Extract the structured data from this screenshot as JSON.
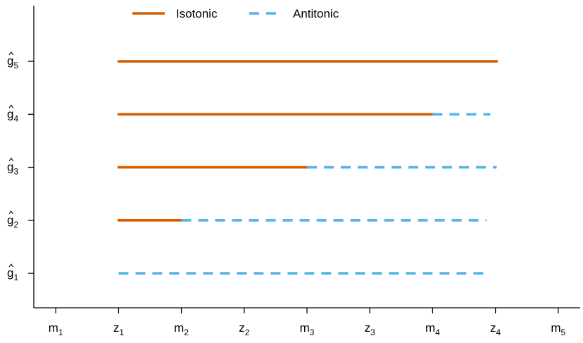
{
  "chart_data": {
    "type": "line",
    "title": "",
    "xlabel": "",
    "ylabel": "",
    "x_ticks": [
      {
        "base": "m",
        "sub": "1",
        "x": 1
      },
      {
        "base": "z",
        "sub": "1",
        "x": 2
      },
      {
        "base": "m",
        "sub": "2",
        "x": 3
      },
      {
        "base": "z",
        "sub": "2",
        "x": 4
      },
      {
        "base": "m",
        "sub": "3",
        "x": 5
      },
      {
        "base": "z",
        "sub": "3",
        "x": 6
      },
      {
        "base": "m",
        "sub": "4",
        "x": 7
      },
      {
        "base": "z",
        "sub": "4",
        "x": 8
      },
      {
        "base": "m",
        "sub": "5",
        "x": 9
      }
    ],
    "y_ticks": [
      {
        "base": "g",
        "sub": "1",
        "y": 1
      },
      {
        "base": "g",
        "sub": "2",
        "y": 2
      },
      {
        "base": "g",
        "sub": "3",
        "y": 3
      },
      {
        "base": "g",
        "sub": "4",
        "y": 4
      },
      {
        "base": "g",
        "sub": "5",
        "y": 5
      }
    ],
    "xlim": [
      0.65,
      9.35
    ],
    "ylim": [
      0.35,
      6.05
    ],
    "legend": {
      "placement": "top-center",
      "items": [
        {
          "label": "Isotonic",
          "color": "#D55E00",
          "style": "solid"
        },
        {
          "label": "Antitonic",
          "color": "#56B4E9",
          "style": "dashed"
        }
      ]
    },
    "rows": [
      {
        "y": 1,
        "segments": [
          {
            "series": "Antitonic",
            "x_start": 2,
            "x_end": 7.88
          }
        ]
      },
      {
        "y": 2,
        "segments": [
          {
            "series": "Isotonic",
            "x_start": 2,
            "x_end": 3
          },
          {
            "series": "Antitonic",
            "x_start": 3,
            "x_end": 7.86
          }
        ]
      },
      {
        "y": 3,
        "segments": [
          {
            "series": "Isotonic",
            "x_start": 2,
            "x_end": 5
          },
          {
            "series": "Antitonic",
            "x_start": 5,
            "x_end": 8.02
          }
        ]
      },
      {
        "y": 4,
        "segments": [
          {
            "series": "Isotonic",
            "x_start": 2,
            "x_end": 7
          },
          {
            "series": "Antitonic",
            "x_start": 7,
            "x_end": 7.92
          }
        ]
      },
      {
        "y": 5,
        "segments": [
          {
            "series": "Isotonic",
            "x_start": 2,
            "x_end": 8.02
          }
        ]
      }
    ]
  }
}
